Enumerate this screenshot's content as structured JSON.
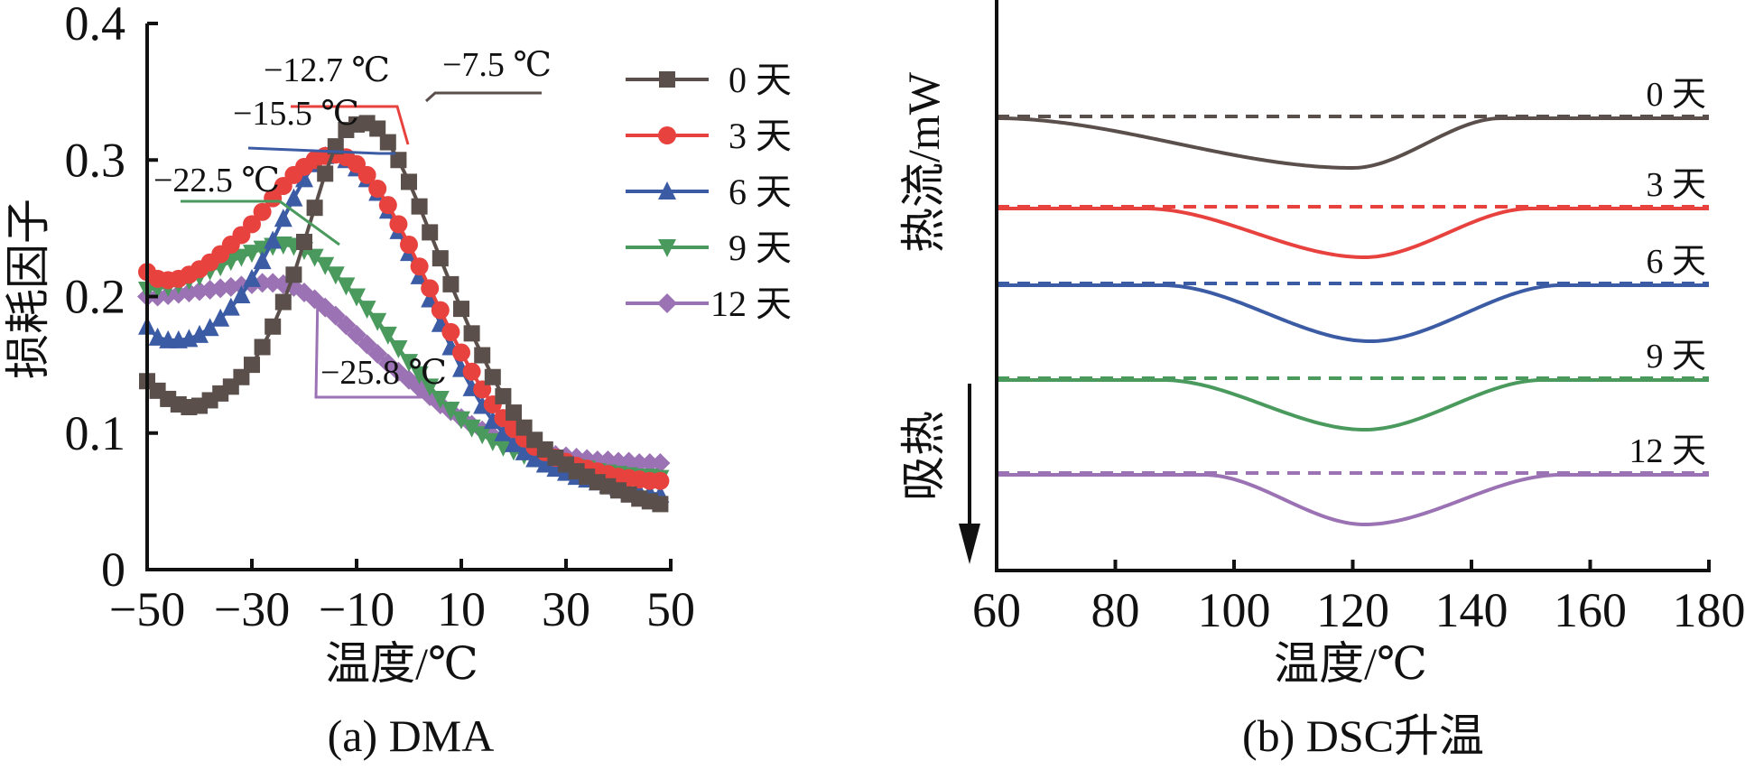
{
  "chart_data": [
    {
      "type": "line",
      "panel": "a",
      "caption": "(a) DMA",
      "xlabel": "温度/℃",
      "ylabel": "损耗因子",
      "xlim": [
        -50,
        50
      ],
      "ylim": [
        0,
        0.4
      ],
      "xticks": [
        -50,
        -30,
        -10,
        10,
        30,
        50
      ],
      "xtick_labels": [
        "−50",
        "−30",
        "−10",
        "10",
        "30",
        "50"
      ],
      "yticks": [
        0,
        0.1,
        0.2,
        0.3,
        0.4
      ],
      "ytick_labels": [
        "0",
        "0.1",
        "0.2",
        "0.3",
        "0.4"
      ],
      "grid": false,
      "legend_position": "top-right",
      "x": [
        -50,
        -48,
        -46,
        -44,
        -42,
        -40,
        -38,
        -36,
        -34,
        -32,
        -30,
        -28,
        -26,
        -24,
        -22,
        -20,
        -18,
        -16,
        -14,
        -12,
        -10,
        -8,
        -6,
        -4,
        -2,
        0,
        2,
        4,
        6,
        8,
        10,
        12,
        14,
        16,
        18,
        20,
        22,
        24,
        26,
        28,
        30,
        32,
        34,
        36,
        38,
        40,
        42,
        44,
        46,
        48
      ],
      "series": [
        {
          "name": "0 天",
          "color": "#5a4f4b",
          "marker": "square",
          "values": [
            0.138,
            0.131,
            0.125,
            0.121,
            0.119,
            0.12,
            0.124,
            0.129,
            0.134,
            0.141,
            0.15,
            0.163,
            0.178,
            0.196,
            0.216,
            0.24,
            0.265,
            0.29,
            0.31,
            0.322,
            0.326,
            0.327,
            0.323,
            0.313,
            0.3,
            0.284,
            0.266,
            0.247,
            0.228,
            0.209,
            0.191,
            0.173,
            0.157,
            0.141,
            0.127,
            0.115,
            0.104,
            0.095,
            0.088,
            0.082,
            0.077,
            0.072,
            0.068,
            0.064,
            0.061,
            0.058,
            0.055,
            0.052,
            0.05,
            0.048
          ]
        },
        {
          "name": "3 天",
          "color": "#e8423f",
          "marker": "circle",
          "values": [
            0.218,
            0.213,
            0.212,
            0.213,
            0.216,
            0.22,
            0.225,
            0.231,
            0.238,
            0.245,
            0.253,
            0.262,
            0.272,
            0.281,
            0.289,
            0.295,
            0.3,
            0.303,
            0.304,
            0.302,
            0.297,
            0.289,
            0.279,
            0.267,
            0.253,
            0.238,
            0.222,
            0.206,
            0.19,
            0.174,
            0.159,
            0.145,
            0.132,
            0.121,
            0.111,
            0.103,
            0.096,
            0.09,
            0.086,
            0.082,
            0.079,
            0.076,
            0.074,
            0.072,
            0.07,
            0.068,
            0.067,
            0.066,
            0.065,
            0.065
          ]
        },
        {
          "name": "6 天",
          "color": "#3b5ba5",
          "marker": "triangle-up",
          "values": [
            0.178,
            0.17,
            0.168,
            0.168,
            0.169,
            0.172,
            0.177,
            0.184,
            0.192,
            0.201,
            0.213,
            0.226,
            0.241,
            0.257,
            0.272,
            0.286,
            0.297,
            0.303,
            0.304,
            0.3,
            0.294,
            0.286,
            0.276,
            0.263,
            0.248,
            0.232,
            0.215,
            0.198,
            0.18,
            0.163,
            0.147,
            0.133,
            0.12,
            0.109,
            0.1,
            0.092,
            0.086,
            0.081,
            0.077,
            0.074,
            0.071,
            0.068,
            0.066,
            0.064,
            0.062,
            0.06,
            0.058,
            0.057,
            0.056,
            0.055
          ]
        },
        {
          "name": "9 天",
          "color": "#4a9a5e",
          "marker": "triangle-down",
          "values": [
            0.205,
            0.206,
            0.207,
            0.209,
            0.212,
            0.215,
            0.219,
            0.222,
            0.226,
            0.229,
            0.232,
            0.235,
            0.237,
            0.238,
            0.237,
            0.234,
            0.229,
            0.223,
            0.216,
            0.208,
            0.2,
            0.191,
            0.182,
            0.172,
            0.162,
            0.152,
            0.143,
            0.134,
            0.125,
            0.117,
            0.11,
            0.104,
            0.099,
            0.094,
            0.09,
            0.087,
            0.084,
            0.082,
            0.08,
            0.078,
            0.076,
            0.075,
            0.074,
            0.072,
            0.071,
            0.07,
            0.069,
            0.068,
            0.068,
            0.067
          ]
        },
        {
          "name": "12 天",
          "color": "#9b72b3",
          "marker": "diamond",
          "values": [
            0.2,
            0.2,
            0.201,
            0.202,
            0.203,
            0.204,
            0.205,
            0.206,
            0.207,
            0.208,
            0.209,
            0.21,
            0.21,
            0.209,
            0.207,
            0.203,
            0.198,
            0.192,
            0.186,
            0.179,
            0.172,
            0.165,
            0.158,
            0.151,
            0.145,
            0.139,
            0.133,
            0.127,
            0.121,
            0.116,
            0.111,
            0.106,
            0.102,
            0.098,
            0.095,
            0.092,
            0.089,
            0.087,
            0.085,
            0.084,
            0.083,
            0.082,
            0.081,
            0.08,
            0.08,
            0.079,
            0.079,
            0.078,
            0.078,
            0.078
          ]
        }
      ],
      "annotations": [
        {
          "text": "−7.5 ℃",
          "series": "0 天",
          "peak_x": -7.5,
          "peak_y": 0.327
        },
        {
          "text": "−12.7 ℃",
          "series": "3 天",
          "peak_x": -12.7,
          "peak_y": 0.304
        },
        {
          "text": "−15.5 ℃",
          "series": "6 天",
          "peak_x": -15.5,
          "peak_y": 0.304
        },
        {
          "text": "−22.5 ℃",
          "series": "9 天",
          "peak_x": -22.5,
          "peak_y": 0.238
        },
        {
          "text": "−25.8 ℃",
          "series": "12 天",
          "peak_x": -25.8,
          "peak_y": 0.21
        }
      ]
    },
    {
      "type": "line",
      "panel": "b",
      "caption": "(b) DSC升温",
      "xlabel": "温度/℃",
      "ylabel": "热流/mW",
      "endotherm_label": "吸热",
      "xlim": [
        60,
        180
      ],
      "xticks": [
        60,
        80,
        100,
        120,
        140,
        160,
        180
      ],
      "xtick_labels": [
        "60",
        "80",
        "100",
        "120",
        "140",
        "160",
        "180"
      ],
      "y_units": "relative (no ticks)",
      "grid": false,
      "series": [
        {
          "name": "0 天",
          "color": "#5a4f4b",
          "baseline": 4.0,
          "dip_depth": 0.55,
          "dip_center": 120,
          "onset": 60,
          "endset": 145
        },
        {
          "name": "3 天",
          "color": "#e8423f",
          "baseline": 3.0,
          "dip_depth": 0.54,
          "dip_center": 122,
          "onset": 85,
          "endset": 150
        },
        {
          "name": "6 天",
          "color": "#3b5ba5",
          "baseline": 2.15,
          "dip_depth": 0.62,
          "dip_center": 123,
          "onset": 88,
          "endset": 155
        },
        {
          "name": "9 天",
          "color": "#4a9a5e",
          "baseline": 1.1,
          "dip_depth": 0.55,
          "dip_center": 122,
          "onset": 88,
          "endset": 152
        },
        {
          "name": "12 天",
          "color": "#9b72b3",
          "baseline": 0.05,
          "dip_depth": 0.55,
          "dip_center": 122,
          "onset": 95,
          "endset": 155
        }
      ]
    }
  ]
}
